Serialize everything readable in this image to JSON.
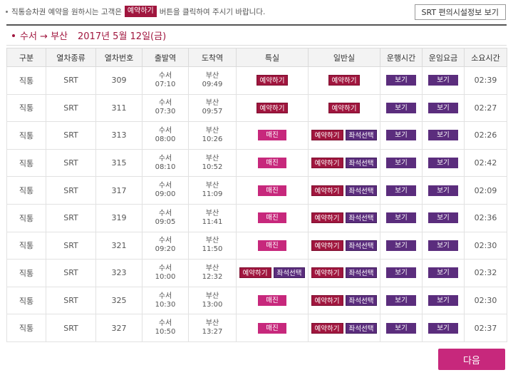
{
  "notice": {
    "text_before": "직통승차권 예약을 원하시는 고객은",
    "button_label": "예약하기",
    "text_after": "버튼을 클릭하여 주시기 바랍니다."
  },
  "facility_button": "SRT 편의시설정보 보기",
  "route": {
    "from_to": "수서 → 부산",
    "date": "2017년 5월 12일(금)"
  },
  "columns": [
    "구분",
    "열차종류",
    "열차번호",
    "출발역",
    "도착역",
    "특실",
    "일반실",
    "운행시간",
    "운임요금",
    "소요시간"
  ],
  "labels": {
    "reserve": "예약하기",
    "seat_select": "좌석선택",
    "sold_out": "매진",
    "view": "보기"
  },
  "rows": [
    {
      "type": "직통",
      "kind": "SRT",
      "no": "309",
      "dep": "수서",
      "dep_time": "07:10",
      "arr": "부산",
      "arr_time": "09:49",
      "special": "reserve",
      "general": "reserve",
      "duration": "02:39"
    },
    {
      "type": "직통",
      "kind": "SRT",
      "no": "311",
      "dep": "수서",
      "dep_time": "07:30",
      "arr": "부산",
      "arr_time": "09:57",
      "special": "reserve",
      "general": "reserve",
      "duration": "02:27"
    },
    {
      "type": "직통",
      "kind": "SRT",
      "no": "313",
      "dep": "수서",
      "dep_time": "08:00",
      "arr": "부산",
      "arr_time": "10:26",
      "special": "soldout",
      "general": "reserve+seat",
      "duration": "02:26"
    },
    {
      "type": "직통",
      "kind": "SRT",
      "no": "315",
      "dep": "수서",
      "dep_time": "08:10",
      "arr": "부산",
      "arr_time": "10:52",
      "special": "soldout",
      "general": "reserve+seat",
      "duration": "02:42"
    },
    {
      "type": "직통",
      "kind": "SRT",
      "no": "317",
      "dep": "수서",
      "dep_time": "09:00",
      "arr": "부산",
      "arr_time": "11:09",
      "special": "soldout",
      "general": "reserve+seat",
      "duration": "02:09"
    },
    {
      "type": "직통",
      "kind": "SRT",
      "no": "319",
      "dep": "수서",
      "dep_time": "09:05",
      "arr": "부산",
      "arr_time": "11:41",
      "special": "soldout",
      "general": "reserve+seat",
      "duration": "02:36"
    },
    {
      "type": "직통",
      "kind": "SRT",
      "no": "321",
      "dep": "수서",
      "dep_time": "09:20",
      "arr": "부산",
      "arr_time": "11:50",
      "special": "soldout",
      "general": "reserve+seat",
      "duration": "02:30"
    },
    {
      "type": "직통",
      "kind": "SRT",
      "no": "323",
      "dep": "수서",
      "dep_time": "10:00",
      "arr": "부산",
      "arr_time": "12:32",
      "special": "reserve+seat",
      "general": "reserve+seat",
      "duration": "02:32"
    },
    {
      "type": "직통",
      "kind": "SRT",
      "no": "325",
      "dep": "수서",
      "dep_time": "10:30",
      "arr": "부산",
      "arr_time": "13:00",
      "special": "soldout",
      "general": "reserve+seat",
      "duration": "02:30"
    },
    {
      "type": "직통",
      "kind": "SRT",
      "no": "327",
      "dep": "수서",
      "dep_time": "10:50",
      "arr": "부산",
      "arr_time": "13:27",
      "special": "soldout",
      "general": "reserve+seat",
      "duration": "02:37"
    }
  ],
  "next_button": "다음",
  "colors": {
    "reserve": "#a0163e",
    "seat_select": "#5b2d7d",
    "sold_out": "#c7287c",
    "view": "#5b2d7d",
    "next": "#c7287c"
  }
}
